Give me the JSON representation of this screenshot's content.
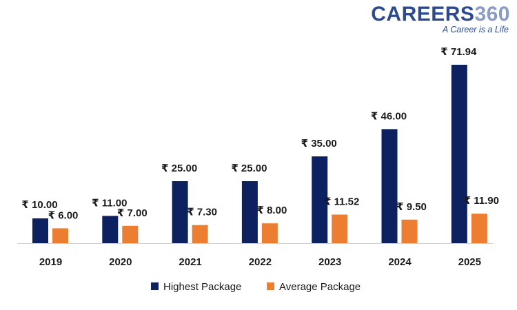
{
  "logo": {
    "name_part1": "CAREERS",
    "name_part2": "360",
    "tagline": "A Career is a Life"
  },
  "chart_data": {
    "type": "bar",
    "title": "",
    "xlabel": "",
    "ylabel": "",
    "ylim": [
      0,
      75
    ],
    "grid": false,
    "legend": "bottom-center",
    "value_prefix": "₹ ",
    "categories": [
      "2019",
      "2020",
      "2021",
      "2022",
      "2023",
      "2024",
      "2025"
    ],
    "series": [
      {
        "name": "Highest Package",
        "color": "#0d2161",
        "values": [
          10.0,
          11.0,
          25.0,
          25.0,
          35.0,
          46.0,
          71.94
        ],
        "labels": [
          "₹ 10.00",
          "₹ 11.00",
          "₹ 25.00",
          "₹ 25.00",
          "₹ 35.00",
          "₹ 46.00",
          "₹ 71.94"
        ]
      },
      {
        "name": "Average Package",
        "color": "#ed7d31",
        "values": [
          6.0,
          7.0,
          7.3,
          8.0,
          11.52,
          9.5,
          11.9
        ],
        "labels": [
          "₹ 6.00",
          "₹ 7.00",
          "₹ 7.30",
          "₹ 8.00",
          "₹ 11.52",
          "₹ 9.50",
          "₹ 11.90"
        ]
      }
    ]
  },
  "colors": {
    "logo_primary": "#2d4a8e",
    "logo_accent": "#8a9cc4",
    "axis": "#d0d0d0"
  }
}
